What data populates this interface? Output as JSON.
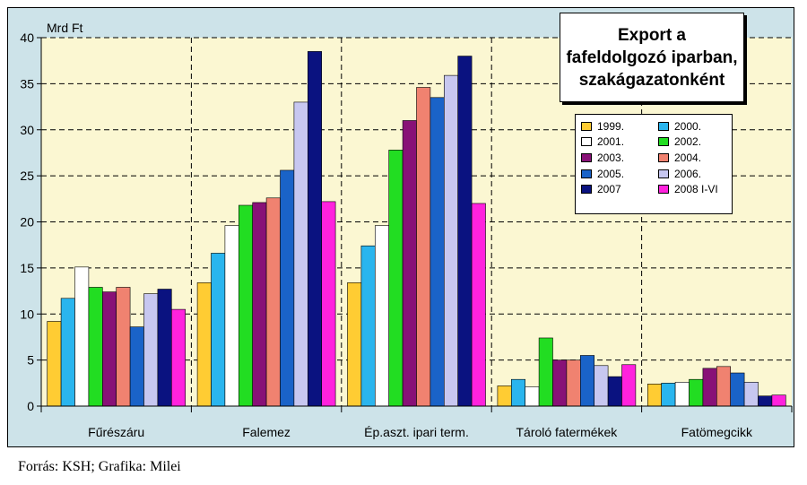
{
  "source_note": "Forrás: KSH; Grafika: Milei",
  "title_lines": [
    "Export a",
    "fafeldolgozó iparban,",
    "szakágazatonként"
  ],
  "chart_data": {
    "type": "bar",
    "ylabel": "Mrd Ft",
    "ylim": [
      0,
      40
    ],
    "yticks": [
      0,
      5,
      10,
      15,
      20,
      25,
      30,
      35,
      40
    ],
    "grid": true,
    "legend_position": "top-right",
    "categories": [
      "Fűrészáru",
      "Falemez",
      "Ép.aszt. ipari term.",
      "Tároló fatermékek",
      "Fatömegcikk"
    ],
    "series": [
      {
        "name": "1999.",
        "color": "#ffcc33",
        "values": [
          9.2,
          13.4,
          13.4,
          2.2,
          2.4
        ]
      },
      {
        "name": "2000.",
        "color": "#2ab5ee",
        "values": [
          11.7,
          16.6,
          17.4,
          2.9,
          2.5
        ]
      },
      {
        "name": "2001.",
        "color": "#ffffff",
        "values": [
          15.1,
          19.6,
          19.6,
          2.1,
          2.6
        ]
      },
      {
        "name": "2002.",
        "color": "#22dd22",
        "values": [
          12.9,
          21.8,
          27.8,
          7.4,
          2.9
        ]
      },
      {
        "name": "2003.",
        "color": "#881177",
        "values": [
          12.4,
          22.1,
          31.0,
          5.0,
          4.1
        ]
      },
      {
        "name": "2004.",
        "color": "#f08270",
        "values": [
          12.9,
          22.6,
          34.6,
          5.0,
          4.3
        ]
      },
      {
        "name": "2005.",
        "color": "#1a63c8",
        "values": [
          8.6,
          25.6,
          33.5,
          5.5,
          3.6
        ]
      },
      {
        "name": "2006.",
        "color": "#c7c7f0",
        "values": [
          12.2,
          33.0,
          35.9,
          4.4,
          2.6
        ]
      },
      {
        "name": "2007",
        "color": "#0a1280",
        "values": [
          12.7,
          38.5,
          38.0,
          3.2,
          1.1
        ]
      },
      {
        "name": "2008 I-VI",
        "color": "#ff22dd",
        "values": [
          10.5,
          22.2,
          22.0,
          4.5,
          1.2
        ]
      }
    ]
  }
}
